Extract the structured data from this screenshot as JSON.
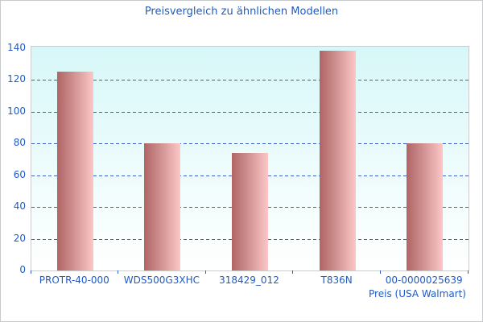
{
  "window": {
    "background": "#ffffff",
    "border_color": "#c6cacd"
  },
  "chart_data": {
    "type": "bar",
    "title": "Preisvergleich zu ähnlichen Modellen",
    "categories": [
      "PROTR-40-000",
      "WDS500G3XHC",
      "318429_012",
      "T836N",
      "00-0000025639"
    ],
    "values": [
      125,
      80,
      74,
      138,
      80
    ],
    "xlabel": "Preis (USA Walmart)",
    "ylabel": "",
    "ylim": [
      0,
      140
    ],
    "yticks": [
      0,
      20,
      40,
      60,
      80,
      100,
      120,
      140
    ],
    "grid": "horizontal dashed lines at y-ticks 20 to 120",
    "legend": "none",
    "colors": {
      "text": "#1f5ac6",
      "gridline": "#3a5ecc",
      "axis_tick": "#1f62c6",
      "bar_gradient_left": "#b16565",
      "bar_gradient_right": "#fdc7c7",
      "plot_bg_top": "#d7f7f8",
      "plot_bg_bottom": "#ffffff",
      "plot_border": "#cccccc"
    }
  }
}
